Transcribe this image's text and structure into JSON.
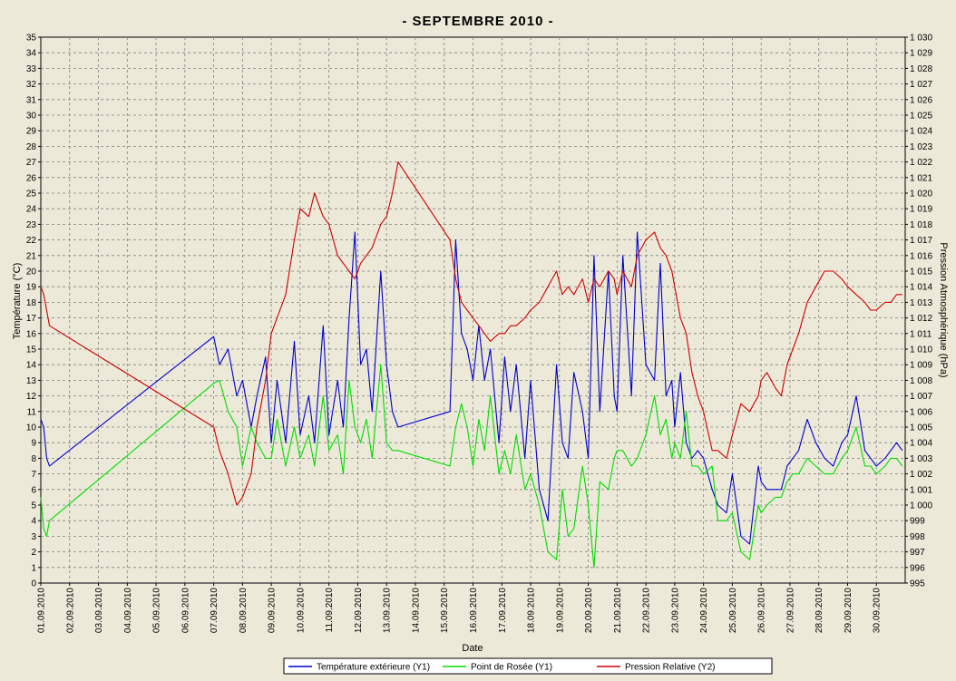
{
  "chart_data": {
    "type": "line",
    "title": "-  SEPTEMBRE  2010  -",
    "xlabel": "Date",
    "ylabel_left": "Température (°C)",
    "ylabel_right": "Pression Atmosphérique (hPa)",
    "ylim_left": [
      0,
      35
    ],
    "ylim_right": [
      995,
      1030
    ],
    "xlim_days": [
      1,
      31
    ],
    "grid": true,
    "legend_position": "bottom",
    "x_ticks": [
      "01.09.2010",
      "02.09.2010",
      "03.09.2010",
      "04.09.2010",
      "05.09.2010",
      "06.09.2010",
      "07.09.2010",
      "08.09.2010",
      "09.09.2010",
      "10.09.2010",
      "11.09.2010",
      "12.09.2010",
      "13.09.2010",
      "14.09.2010",
      "15.09.2010",
      "16.09.2010",
      "17.09.2010",
      "18.09.2010",
      "19.09.2010",
      "20.09.2010",
      "21.09.2010",
      "22.09.2010",
      "23.09.2010",
      "24.09.2010",
      "25.09.2010",
      "26.09.2010",
      "27.09.2010",
      "28.09.2010",
      "29.09.2010",
      "30.09.2010"
    ],
    "y_ticks_left": [
      "0",
      "1",
      "2",
      "3",
      "4",
      "5",
      "6",
      "7",
      "8",
      "9",
      "10",
      "11",
      "12",
      "13",
      "14",
      "15",
      "16",
      "17",
      "18",
      "19",
      "20",
      "21",
      "22",
      "23",
      "24",
      "25",
      "26",
      "27",
      "28",
      "29",
      "30",
      "31",
      "32",
      "33",
      "34",
      "35"
    ],
    "y_ticks_right": [
      "995",
      "996",
      "997",
      "998",
      "999",
      "1 000",
      "1 001",
      "1 002",
      "1 003",
      "1 004",
      "1 005",
      "1 006",
      "1 007",
      "1 008",
      "1 009",
      "1 010",
      "1 011",
      "1 012",
      "1 013",
      "1 014",
      "1 015",
      "1 016",
      "1 017",
      "1 018",
      "1 019",
      "1 020",
      "1 021",
      "1 022",
      "1 023",
      "1 024",
      "1 025",
      "1 026",
      "1 027",
      "1 028",
      "1 029",
      "1 030"
    ],
    "series": [
      {
        "name": "Température extérieure (Y1)",
        "color": "#0000cc",
        "axis": "left",
        "x": [
          1.0,
          1.1,
          1.2,
          1.3,
          7.0,
          7.2,
          7.5,
          7.8,
          8.0,
          8.3,
          8.5,
          8.8,
          9.0,
          9.2,
          9.5,
          9.8,
          10.0,
          10.3,
          10.5,
          10.8,
          11.0,
          11.3,
          11.5,
          11.7,
          11.9,
          12.1,
          12.3,
          12.5,
          12.8,
          13.0,
          13.2,
          13.4,
          15.2,
          15.4,
          15.6,
          15.8,
          16.0,
          16.2,
          16.4,
          16.6,
          16.9,
          17.1,
          17.3,
          17.5,
          17.8,
          18.0,
          18.3,
          18.6,
          18.9,
          19.1,
          19.3,
          19.5,
          19.8,
          20.0,
          20.2,
          20.4,
          20.7,
          20.9,
          21.0,
          21.2,
          21.5,
          21.7,
          22.0,
          22.3,
          22.5,
          22.7,
          22.9,
          23.0,
          23.2,
          23.4,
          23.6,
          23.8,
          24.0,
          24.3,
          24.5,
          24.8,
          25.0,
          25.3,
          25.6,
          25.9,
          26.0,
          26.2,
          26.5,
          26.7,
          26.9,
          27.1,
          27.3,
          27.6,
          27.9,
          28.2,
          28.5,
          28.8,
          29.0,
          29.3,
          29.6,
          29.8,
          30.0,
          30.3,
          30.5,
          30.7,
          30.9
        ],
        "y": [
          10.5,
          10.0,
          8.0,
          7.5,
          15.8,
          14.0,
          15.0,
          12.0,
          13.0,
          10.0,
          12.0,
          14.5,
          9.0,
          13.0,
          9.0,
          15.5,
          9.5,
          12.0,
          9.0,
          16.5,
          9.5,
          13.0,
          10.0,
          17.0,
          22.5,
          14.0,
          15.0,
          11.0,
          20.0,
          14.0,
          11.0,
          10.0,
          11.0,
          22.0,
          16.0,
          15.0,
          13.0,
          16.5,
          13.0,
          15.0,
          9.0,
          14.5,
          11.0,
          14.0,
          8.0,
          13.0,
          6.0,
          4.0,
          14.0,
          9.0,
          8.0,
          13.5,
          11.0,
          8.0,
          21.0,
          11.0,
          20.0,
          12.0,
          11.0,
          21.0,
          12.0,
          22.5,
          14.0,
          13.0,
          20.5,
          12.0,
          13.0,
          10.0,
          13.5,
          9.0,
          8.0,
          8.5,
          8.0,
          6.0,
          5.0,
          4.5,
          7.0,
          3.0,
          2.5,
          7.5,
          6.5,
          6.0,
          6.0,
          6.0,
          7.5,
          8.0,
          8.5,
          10.5,
          9.0,
          8.0,
          7.5,
          9.0,
          9.5,
          12.0,
          8.5,
          8.0,
          7.5,
          8.0,
          8.5,
          9.0,
          8.5
        ]
      },
      {
        "name": "Point de Rosée (Y1)",
        "color": "#00dd00",
        "axis": "left",
        "x": [
          1.0,
          1.1,
          1.2,
          1.3,
          7.0,
          7.2,
          7.5,
          7.8,
          8.0,
          8.3,
          8.5,
          8.8,
          9.0,
          9.2,
          9.5,
          9.8,
          10.0,
          10.3,
          10.5,
          10.8,
          11.0,
          11.3,
          11.5,
          11.7,
          11.9,
          12.1,
          12.3,
          12.5,
          12.8,
          13.0,
          13.2,
          13.4,
          15.2,
          15.4,
          15.6,
          15.8,
          16.0,
          16.2,
          16.4,
          16.6,
          16.9,
          17.1,
          17.3,
          17.5,
          17.8,
          18.0,
          18.3,
          18.6,
          18.9,
          19.1,
          19.3,
          19.5,
          19.8,
          20.0,
          20.2,
          20.4,
          20.7,
          20.9,
          21.0,
          21.2,
          21.5,
          21.7,
          22.0,
          22.3,
          22.5,
          22.7,
          22.9,
          23.0,
          23.2,
          23.4,
          23.6,
          23.8,
          24.0,
          24.3,
          24.5,
          24.8,
          25.0,
          25.3,
          25.6,
          25.9,
          26.0,
          26.2,
          26.5,
          26.7,
          26.9,
          27.1,
          27.3,
          27.6,
          27.9,
          28.2,
          28.5,
          28.8,
          29.0,
          29.3,
          29.6,
          29.8,
          30.0,
          30.3,
          30.5,
          30.7,
          30.9
        ],
        "y": [
          5.5,
          3.5,
          3.0,
          4.0,
          12.8,
          13.0,
          11.0,
          10.0,
          7.5,
          10.0,
          9.0,
          8.0,
          8.0,
          10.5,
          7.5,
          10.0,
          8.0,
          9.5,
          7.5,
          12.0,
          8.5,
          9.5,
          7.0,
          13.0,
          10.0,
          9.0,
          10.5,
          8.0,
          14.0,
          9.0,
          8.5,
          8.5,
          7.5,
          10.0,
          11.5,
          10.0,
          7.5,
          10.5,
          8.5,
          12.0,
          7.0,
          8.5,
          7.0,
          9.5,
          6.0,
          7.0,
          5.0,
          2.0,
          1.5,
          6.0,
          3.0,
          3.5,
          7.5,
          5.0,
          1.0,
          6.5,
          6.0,
          8.0,
          8.5,
          8.5,
          7.5,
          8.0,
          9.5,
          12.0,
          9.5,
          10.5,
          8.0,
          9.0,
          8.0,
          11.0,
          7.5,
          7.5,
          7.0,
          7.5,
          4.0,
          4.0,
          4.5,
          2.0,
          1.5,
          5.0,
          4.5,
          5.0,
          5.5,
          5.5,
          6.5,
          7.0,
          7.0,
          8.0,
          7.5,
          7.0,
          7.0,
          8.0,
          8.5,
          10.0,
          7.5,
          7.5,
          7.0,
          7.5,
          8.0,
          8.0,
          7.5
        ]
      },
      {
        "name": "Pression Relative (Y2)",
        "color": "#cc0000",
        "axis": "right",
        "x": [
          1.0,
          1.1,
          1.2,
          1.3,
          7.0,
          7.2,
          7.5,
          7.8,
          8.0,
          8.3,
          8.5,
          8.8,
          9.0,
          9.2,
          9.5,
          9.8,
          10.0,
          10.3,
          10.5,
          10.8,
          11.0,
          11.3,
          11.5,
          11.7,
          11.9,
          12.1,
          12.3,
          12.5,
          12.8,
          13.0,
          13.2,
          13.4,
          15.2,
          15.4,
          15.6,
          15.8,
          16.0,
          16.2,
          16.4,
          16.6,
          16.9,
          17.1,
          17.3,
          17.5,
          17.8,
          18.0,
          18.3,
          18.6,
          18.9,
          19.1,
          19.3,
          19.5,
          19.8,
          20.0,
          20.2,
          20.4,
          20.7,
          20.9,
          21.0,
          21.2,
          21.5,
          21.7,
          22.0,
          22.3,
          22.5,
          22.7,
          22.9,
          23.0,
          23.2,
          23.4,
          23.6,
          23.8,
          24.0,
          24.3,
          24.5,
          24.8,
          25.0,
          25.3,
          25.6,
          25.9,
          26.0,
          26.2,
          26.5,
          26.7,
          26.9,
          27.1,
          27.3,
          27.6,
          27.9,
          28.2,
          28.5,
          28.8,
          29.0,
          29.3,
          29.6,
          29.8,
          30.0,
          30.3,
          30.5,
          30.7,
          30.9
        ],
        "y": [
          1014.0,
          1013.5,
          1012.5,
          1011.5,
          1005.0,
          1003.5,
          1002.0,
          1000.0,
          1000.5,
          1002.0,
          1005.0,
          1008.0,
          1011.0,
          1012.0,
          1013.5,
          1017.0,
          1019.0,
          1018.5,
          1020.0,
          1018.5,
          1018.0,
          1016.0,
          1015.5,
          1015.0,
          1014.5,
          1015.5,
          1016.0,
          1016.5,
          1018.0,
          1018.5,
          1020.0,
          1022.0,
          1017.0,
          1014.5,
          1013.0,
          1012.5,
          1012.0,
          1011.5,
          1011.0,
          1010.5,
          1011.0,
          1011.0,
          1011.5,
          1011.5,
          1012.0,
          1012.5,
          1013.0,
          1014.0,
          1015.0,
          1013.5,
          1014.0,
          1013.5,
          1014.5,
          1013.0,
          1014.5,
          1014.0,
          1015.0,
          1014.5,
          1013.5,
          1015.0,
          1014.0,
          1016.0,
          1017.0,
          1017.5,
          1016.5,
          1016.0,
          1015.0,
          1014.0,
          1012.0,
          1011.0,
          1008.5,
          1007.0,
          1006.0,
          1003.5,
          1003.5,
          1003.0,
          1004.5,
          1006.5,
          1006.0,
          1007.0,
          1008.0,
          1008.5,
          1007.5,
          1007.0,
          1009.0,
          1010.0,
          1011.0,
          1013.0,
          1014.0,
          1015.0,
          1015.0,
          1014.5,
          1014.0,
          1013.5,
          1013.0,
          1012.5,
          1012.5,
          1013.0,
          1013.0,
          1013.5,
          1013.5
        ]
      }
    ]
  }
}
